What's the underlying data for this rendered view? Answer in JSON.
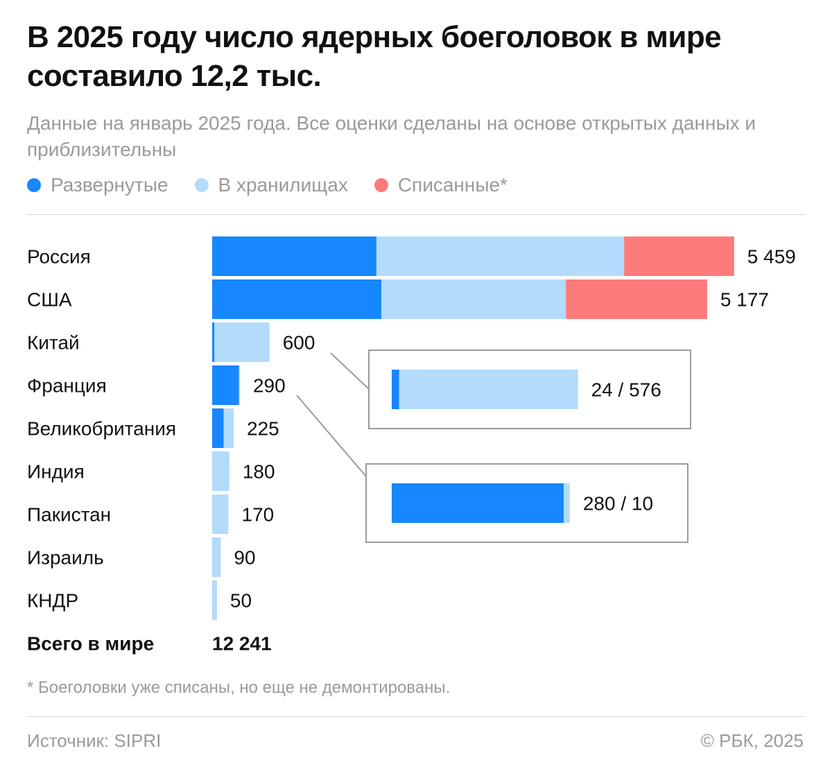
{
  "title": "В 2025 году число ядерных боеголовок в мире составило 12,2 тыс.",
  "subtitle": "Данные на январь 2025 года. Все оценки сделаны на основе открытых данных и приблизительны",
  "legend": [
    {
      "label": "Развернутые",
      "color": "#1787ff"
    },
    {
      "label": "В хранилищах",
      "color": "#b3dbfc"
    },
    {
      "label": "Списанные*",
      "color": "#ff7a7a"
    }
  ],
  "chart_data": {
    "type": "bar",
    "orientation": "horizontal",
    "stacked": true,
    "categories": [
      "Россия",
      "США",
      "Китай",
      "Франция",
      "Великобритания",
      "Индия",
      "Пакистан",
      "Израиль",
      "КНДР"
    ],
    "series": [
      {
        "name": "Развернутые",
        "color": "#1787ff",
        "values": [
          1718,
          1770,
          24,
          280,
          120,
          0,
          0,
          0,
          0
        ]
      },
      {
        "name": "В хранилищах",
        "color": "#b3dbfc",
        "values": [
          2591,
          1930,
          576,
          10,
          105,
          180,
          170,
          90,
          50
        ]
      },
      {
        "name": "Списанные*",
        "color": "#ff7a7a",
        "values": [
          1150,
          1477,
          0,
          0,
          0,
          0,
          0,
          0,
          0
        ]
      }
    ],
    "total_labels": [
      "5 459",
      "5 177",
      "600",
      "290",
      "225",
      "180",
      "170",
      "90",
      "50"
    ],
    "callouts": [
      {
        "category": "Китай",
        "label": "24 / 576",
        "values": [
          24,
          576
        ]
      },
      {
        "category": "Франция",
        "label": "280 / 10",
        "values": [
          280,
          10
        ]
      }
    ],
    "total_row": {
      "label": "Всего в мире",
      "value": "12 241"
    }
  },
  "footnote": "* Боеголовки уже списаны, но еще не демонтированы.",
  "source": "Источник: SIPRI",
  "copyright": "© РБК, 2025"
}
